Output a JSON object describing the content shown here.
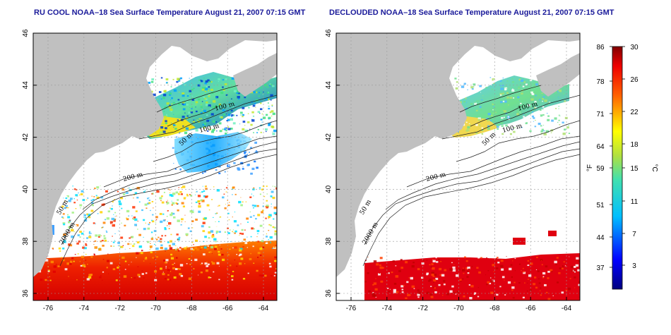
{
  "panels": [
    {
      "title": "RU COOL NOAA–18 Sea Surface Temperature August 21, 2007 07:15 GMT",
      "mode": "raw",
      "contour_labels": [
        "100 m",
        "100 m",
        "50 m",
        "200 m",
        "50 m",
        "2000 m"
      ]
    },
    {
      "title": "DECLOUDED NOAA–18 Sea Surface Temperature August 21, 2007 07:15 GMT",
      "mode": "declouded",
      "contour_labels": [
        "100 m",
        "100 m",
        "50 m",
        "200 m",
        "50 m",
        "2000 m"
      ]
    }
  ],
  "axes": {
    "lon_ticks": [
      "-76",
      "-74",
      "-72",
      "-70",
      "-68",
      "-66",
      "-64"
    ],
    "lat_ticks": [
      "46",
      "44",
      "42",
      "40",
      "38",
      "36"
    ]
  },
  "colorbar": {
    "f_ticks": [
      "86",
      "78",
      "71",
      "64",
      "59",
      "51",
      "44",
      "37"
    ],
    "c_ticks": [
      "30",
      "26",
      "22",
      "18",
      "15",
      "11",
      "7",
      "3"
    ],
    "f_label": "°F",
    "c_label": "°C"
  },
  "colors": {
    "land": "#c0c0c0",
    "cloud": "#ffffff",
    "title": "#1a1a9a"
  }
}
